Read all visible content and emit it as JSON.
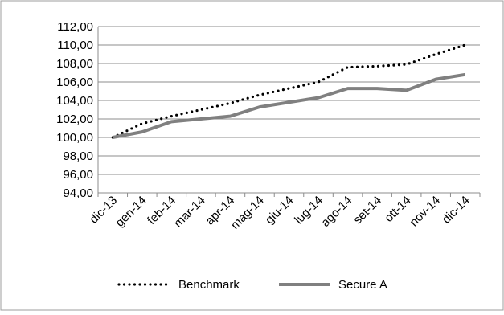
{
  "chart_data": {
    "type": "line",
    "title": "",
    "xlabel": "",
    "ylabel": "",
    "categories": [
      "dic-13",
      "gen-14",
      "feb-14",
      "mar-14",
      "apr-14",
      "mag-14",
      "giu-14",
      "lug-14",
      "ago-14",
      "set-14",
      "ott-14",
      "nov-14",
      "dic-14"
    ],
    "ylim": [
      94,
      112
    ],
    "yticks": [
      "94,00",
      "96,00",
      "98,00",
      "100,00",
      "102,00",
      "104,00",
      "106,00",
      "108,00",
      "110,00",
      "112,00"
    ],
    "grid": "horizontal",
    "legend_position": "bottom",
    "series": [
      {
        "name": "Benchmark",
        "style": "dotted",
        "color": "#000000",
        "values": [
          100.0,
          101.5,
          102.3,
          103.0,
          103.7,
          104.6,
          105.3,
          106.0,
          107.6,
          107.7,
          107.9,
          109.0,
          110.0
        ]
      },
      {
        "name": "Secure A",
        "style": "solid",
        "color": "#808080",
        "values": [
          100.0,
          100.6,
          101.7,
          102.0,
          102.3,
          103.3,
          103.8,
          104.3,
          105.3,
          105.3,
          105.1,
          106.3,
          106.8
        ]
      }
    ]
  }
}
